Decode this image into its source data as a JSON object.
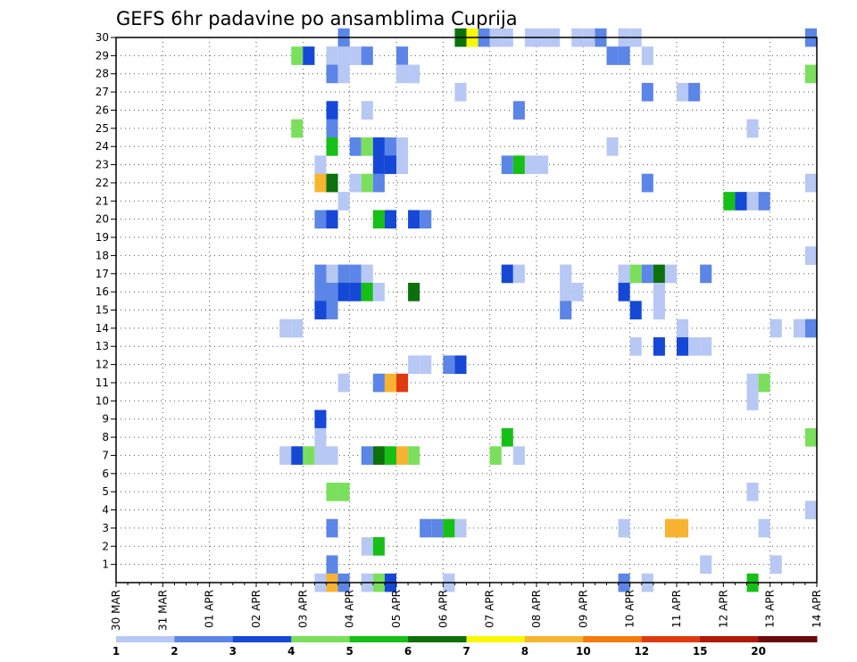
{
  "chart_data": {
    "type": "heatmap",
    "title": "GEFS 6hr padavine po ansamblima Cuprija",
    "xlabel": "",
    "ylabel": "",
    "x_tick_labels": [
      "30 MAR",
      "31 MAR",
      "01 APR",
      "02 APR",
      "03 APR",
      "04 APR",
      "05 APR",
      "06 APR",
      "07 APR",
      "08 APR",
      "09 APR",
      "10 APR",
      "11 APR",
      "12 APR",
      "13 APR",
      "14 APR"
    ],
    "x_unit": "6-hour step (4 steps per day) from 30 MAR",
    "xlim": [
      0,
      60
    ],
    "y_tick_labels": [
      1,
      2,
      3,
      4,
      5,
      6,
      7,
      8,
      9,
      10,
      11,
      12,
      13,
      14,
      15,
      16,
      17,
      18,
      19,
      20,
      21,
      22,
      23,
      24,
      25,
      26,
      27,
      28,
      29,
      30
    ],
    "ylim": [
      0,
      30
    ],
    "grid": true,
    "legend": {
      "placement": "bottom",
      "labels": [
        "1",
        "2",
        "3",
        "4",
        "5",
        "6",
        "7",
        "8",
        "10",
        "12",
        "15",
        "20"
      ],
      "colors": [
        "#b7c8f4",
        "#5b85e6",
        "#1548d6",
        "#7ae05c",
        "#16c016",
        "#0c700c",
        "#f8f800",
        "#f8b430",
        "#f47a10",
        "#e03a10",
        "#b01808",
        "#6a0a0a"
      ]
    },
    "color_classes": [
      "#b7c8f4",
      "#5b85e6",
      "#1548d6",
      "#7ae05c",
      "#16c016",
      "#0c700c",
      "#f8f800",
      "#f8b430",
      "#f47a10",
      "#e03a10",
      "#b01808",
      "#6a0a0a"
    ],
    "cells": [
      {
        "x": 19,
        "y": 30,
        "c": 1
      },
      {
        "x": 29,
        "y": 30,
        "c": 5
      },
      {
        "x": 30,
        "y": 30,
        "c": 6
      },
      {
        "x": 31,
        "y": 30,
        "c": 1
      },
      {
        "x": 32,
        "y": 30,
        "c": 0
      },
      {
        "x": 33,
        "y": 30,
        "c": 0
      },
      {
        "x": 35,
        "y": 30,
        "c": 0
      },
      {
        "x": 36,
        "y": 30,
        "c": 0
      },
      {
        "x": 37,
        "y": 30,
        "c": 0
      },
      {
        "x": 39,
        "y": 30,
        "c": 0
      },
      {
        "x": 40,
        "y": 30,
        "c": 0
      },
      {
        "x": 41,
        "y": 30,
        "c": 1
      },
      {
        "x": 43,
        "y": 30,
        "c": 0
      },
      {
        "x": 44,
        "y": 30,
        "c": 0
      },
      {
        "x": 59,
        "y": 30,
        "c": 1
      },
      {
        "x": 15,
        "y": 29,
        "c": 3
      },
      {
        "x": 16,
        "y": 29,
        "c": 2
      },
      {
        "x": 18,
        "y": 29,
        "c": 0
      },
      {
        "x": 19,
        "y": 29,
        "c": 0
      },
      {
        "x": 20,
        "y": 29,
        "c": 0
      },
      {
        "x": 21,
        "y": 29,
        "c": 1
      },
      {
        "x": 24,
        "y": 29,
        "c": 1
      },
      {
        "x": 42,
        "y": 29,
        "c": 1
      },
      {
        "x": 43,
        "y": 29,
        "c": 1
      },
      {
        "x": 45,
        "y": 29,
        "c": 0
      },
      {
        "x": 18,
        "y": 28,
        "c": 1
      },
      {
        "x": 19,
        "y": 28,
        "c": 0
      },
      {
        "x": 24,
        "y": 28,
        "c": 0
      },
      {
        "x": 25,
        "y": 28,
        "c": 0
      },
      {
        "x": 59,
        "y": 28,
        "c": 3
      },
      {
        "x": 29,
        "y": 27,
        "c": 0
      },
      {
        "x": 45,
        "y": 27,
        "c": 1
      },
      {
        "x": 48,
        "y": 27,
        "c": 0
      },
      {
        "x": 49,
        "y": 27,
        "c": 1
      },
      {
        "x": 18,
        "y": 26,
        "c": 2
      },
      {
        "x": 21,
        "y": 26,
        "c": 0
      },
      {
        "x": 34,
        "y": 26,
        "c": 1
      },
      {
        "x": 15,
        "y": 25,
        "c": 3
      },
      {
        "x": 18,
        "y": 25,
        "c": 1
      },
      {
        "x": 54,
        "y": 25,
        "c": 0
      },
      {
        "x": 18,
        "y": 24,
        "c": 4
      },
      {
        "x": 20,
        "y": 24,
        "c": 1
      },
      {
        "x": 21,
        "y": 24,
        "c": 3
      },
      {
        "x": 22,
        "y": 24,
        "c": 2
      },
      {
        "x": 23,
        "y": 24,
        "c": 1
      },
      {
        "x": 24,
        "y": 24,
        "c": 0
      },
      {
        "x": 42,
        "y": 24,
        "c": 0
      },
      {
        "x": 17,
        "y": 23,
        "c": 0
      },
      {
        "x": 22,
        "y": 23,
        "c": 2
      },
      {
        "x": 23,
        "y": 23,
        "c": 2
      },
      {
        "x": 24,
        "y": 23,
        "c": 0
      },
      {
        "x": 33,
        "y": 23,
        "c": 1
      },
      {
        "x": 34,
        "y": 23,
        "c": 4
      },
      {
        "x": 35,
        "y": 23,
        "c": 0
      },
      {
        "x": 36,
        "y": 23,
        "c": 0
      },
      {
        "x": 17,
        "y": 22,
        "c": 7
      },
      {
        "x": 18,
        "y": 22,
        "c": 5
      },
      {
        "x": 20,
        "y": 22,
        "c": 0
      },
      {
        "x": 21,
        "y": 22,
        "c": 3
      },
      {
        "x": 22,
        "y": 22,
        "c": 1
      },
      {
        "x": 45,
        "y": 22,
        "c": 1
      },
      {
        "x": 59,
        "y": 22,
        "c": 0
      },
      {
        "x": 19,
        "y": 21,
        "c": 0
      },
      {
        "x": 52,
        "y": 21,
        "c": 4
      },
      {
        "x": 53,
        "y": 21,
        "c": 2
      },
      {
        "x": 54,
        "y": 21,
        "c": 0
      },
      {
        "x": 55,
        "y": 21,
        "c": 1
      },
      {
        "x": 17,
        "y": 20,
        "c": 1
      },
      {
        "x": 18,
        "y": 20,
        "c": 2
      },
      {
        "x": 22,
        "y": 20,
        "c": 4
      },
      {
        "x": 23,
        "y": 20,
        "c": 2
      },
      {
        "x": 25,
        "y": 20,
        "c": 2
      },
      {
        "x": 26,
        "y": 20,
        "c": 1
      },
      {
        "x": 59,
        "y": 18,
        "c": 0
      },
      {
        "x": 17,
        "y": 17,
        "c": 1
      },
      {
        "x": 18,
        "y": 17,
        "c": 0
      },
      {
        "x": 19,
        "y": 17,
        "c": 1
      },
      {
        "x": 20,
        "y": 17,
        "c": 1
      },
      {
        "x": 21,
        "y": 17,
        "c": 0
      },
      {
        "x": 33,
        "y": 17,
        "c": 2
      },
      {
        "x": 34,
        "y": 17,
        "c": 0
      },
      {
        "x": 38,
        "y": 17,
        "c": 0
      },
      {
        "x": 43,
        "y": 17,
        "c": 0
      },
      {
        "x": 44,
        "y": 17,
        "c": 3
      },
      {
        "x": 45,
        "y": 17,
        "c": 1
      },
      {
        "x": 46,
        "y": 17,
        "c": 5
      },
      {
        "x": 47,
        "y": 17,
        "c": 0
      },
      {
        "x": 50,
        "y": 17,
        "c": 1
      },
      {
        "x": 17,
        "y": 16,
        "c": 1
      },
      {
        "x": 18,
        "y": 16,
        "c": 1
      },
      {
        "x": 19,
        "y": 16,
        "c": 2
      },
      {
        "x": 20,
        "y": 16,
        "c": 2
      },
      {
        "x": 21,
        "y": 16,
        "c": 4
      },
      {
        "x": 22,
        "y": 16,
        "c": 0
      },
      {
        "x": 25,
        "y": 16,
        "c": 5
      },
      {
        "x": 38,
        "y": 16,
        "c": 0
      },
      {
        "x": 39,
        "y": 16,
        "c": 0
      },
      {
        "x": 43,
        "y": 16,
        "c": 2
      },
      {
        "x": 46,
        "y": 16,
        "c": 0
      },
      {
        "x": 17,
        "y": 15,
        "c": 2
      },
      {
        "x": 18,
        "y": 15,
        "c": 1
      },
      {
        "x": 38,
        "y": 15,
        "c": 1
      },
      {
        "x": 44,
        "y": 15,
        "c": 2
      },
      {
        "x": 46,
        "y": 15,
        "c": 0
      },
      {
        "x": 14,
        "y": 14,
        "c": 0
      },
      {
        "x": 15,
        "y": 14,
        "c": 0
      },
      {
        "x": 48,
        "y": 14,
        "c": 0
      },
      {
        "x": 56,
        "y": 14,
        "c": 0
      },
      {
        "x": 58,
        "y": 14,
        "c": 0
      },
      {
        "x": 59,
        "y": 14,
        "c": 1
      },
      {
        "x": 44,
        "y": 13,
        "c": 0
      },
      {
        "x": 46,
        "y": 13,
        "c": 2
      },
      {
        "x": 48,
        "y": 13,
        "c": 2
      },
      {
        "x": 49,
        "y": 13,
        "c": 0
      },
      {
        "x": 50,
        "y": 13,
        "c": 0
      },
      {
        "x": 25,
        "y": 12,
        "c": 0
      },
      {
        "x": 26,
        "y": 12,
        "c": 0
      },
      {
        "x": 28,
        "y": 12,
        "c": 1
      },
      {
        "x": 29,
        "y": 12,
        "c": 2
      },
      {
        "x": 19,
        "y": 11,
        "c": 0
      },
      {
        "x": 22,
        "y": 11,
        "c": 1
      },
      {
        "x": 23,
        "y": 11,
        "c": 7
      },
      {
        "x": 24,
        "y": 11,
        "c": 9
      },
      {
        "x": 54,
        "y": 11,
        "c": 0
      },
      {
        "x": 55,
        "y": 11,
        "c": 3
      },
      {
        "x": 54,
        "y": 10,
        "c": 0
      },
      {
        "x": 17,
        "y": 9,
        "c": 2
      },
      {
        "x": 17,
        "y": 8,
        "c": 0
      },
      {
        "x": 33,
        "y": 8,
        "c": 4
      },
      {
        "x": 59,
        "y": 8,
        "c": 3
      },
      {
        "x": 14,
        "y": 7,
        "c": 0
      },
      {
        "x": 15,
        "y": 7,
        "c": 2
      },
      {
        "x": 16,
        "y": 7,
        "c": 3
      },
      {
        "x": 17,
        "y": 7,
        "c": 0
      },
      {
        "x": 18,
        "y": 7,
        "c": 0
      },
      {
        "x": 21,
        "y": 7,
        "c": 1
      },
      {
        "x": 22,
        "y": 7,
        "c": 5
      },
      {
        "x": 23,
        "y": 7,
        "c": 4
      },
      {
        "x": 24,
        "y": 7,
        "c": 7
      },
      {
        "x": 25,
        "y": 7,
        "c": 3
      },
      {
        "x": 32,
        "y": 7,
        "c": 3
      },
      {
        "x": 34,
        "y": 7,
        "c": 0
      },
      {
        "x": 18,
        "y": 5,
        "c": 3
      },
      {
        "x": 19,
        "y": 5,
        "c": 3
      },
      {
        "x": 54,
        "y": 5,
        "c": 0
      },
      {
        "x": 59,
        "y": 4,
        "c": 0
      },
      {
        "x": 18,
        "y": 3,
        "c": 1
      },
      {
        "x": 26,
        "y": 3,
        "c": 1
      },
      {
        "x": 27,
        "y": 3,
        "c": 1
      },
      {
        "x": 28,
        "y": 3,
        "c": 4
      },
      {
        "x": 29,
        "y": 3,
        "c": 0
      },
      {
        "x": 43,
        "y": 3,
        "c": 0
      },
      {
        "x": 47,
        "y": 3,
        "c": 7
      },
      {
        "x": 48,
        "y": 3,
        "c": 7
      },
      {
        "x": 55,
        "y": 3,
        "c": 0
      },
      {
        "x": 21,
        "y": 2,
        "c": 0
      },
      {
        "x": 22,
        "y": 2,
        "c": 4
      },
      {
        "x": 18,
        "y": 1,
        "c": 1
      },
      {
        "x": 50,
        "y": 1,
        "c": 0
      },
      {
        "x": 56,
        "y": 1,
        "c": 0
      },
      {
        "x": 17,
        "y": 0,
        "c": 0
      },
      {
        "x": 18,
        "y": 0,
        "c": 7
      },
      {
        "x": 19,
        "y": 0,
        "c": 1
      },
      {
        "x": 21,
        "y": 0,
        "c": 0
      },
      {
        "x": 22,
        "y": 0,
        "c": 3
      },
      {
        "x": 23,
        "y": 0,
        "c": 2
      },
      {
        "x": 28,
        "y": 0,
        "c": 0
      },
      {
        "x": 43,
        "y": 0,
        "c": 1
      },
      {
        "x": 45,
        "y": 0,
        "c": 0
      },
      {
        "x": 54,
        "y": 0,
        "c": 4
      }
    ]
  }
}
